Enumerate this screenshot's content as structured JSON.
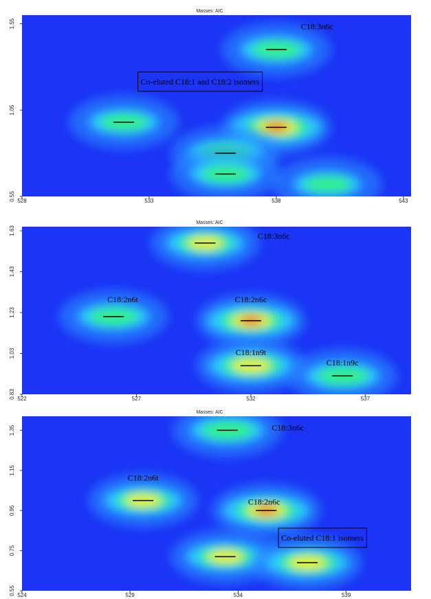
{
  "chart_data": [
    {
      "type": "contour",
      "title": "Masses: AIC",
      "background": "#1b34f5",
      "xlim": [
        528,
        543.3
      ],
      "ylim": [
        0.55,
        1.6
      ],
      "xticks": [
        528,
        533,
        538,
        543
      ],
      "yticks": [
        0.55,
        1.05,
        1.55
      ],
      "peaks": {
        "x": [
          538,
          538,
          532,
          536,
          536,
          540
        ],
        "y": [
          1.4,
          0.95,
          0.98,
          0.8,
          0.68,
          0.62
        ],
        "intensity": [
          0.55,
          1.0,
          0.5,
          0.6,
          0.5,
          0.45
        ],
        "marker": [
          true,
          true,
          true,
          true,
          true,
          false
        ]
      },
      "annotations": [
        {
          "text": "C18:3n6c",
          "x": 539.6,
          "y": 1.53,
          "boxed": false
        },
        {
          "text": "Co-eluted C18:1 and C18:2 isomers",
          "x": 535,
          "y": 1.21,
          "boxed": true
        }
      ]
    },
    {
      "type": "contour",
      "title": "Masses: AIC",
      "background": "#1b34f5",
      "xlim": [
        522,
        539
      ],
      "ylim": [
        0.83,
        1.65
      ],
      "xticks": [
        522,
        527,
        532,
        537
      ],
      "yticks": [
        0.83,
        1.03,
        1.23,
        1.43,
        1.63
      ],
      "peaks": {
        "x": [
          530,
          526,
          532,
          532,
          536
        ],
        "y": [
          1.57,
          1.21,
          1.19,
          0.97,
          0.92
        ],
        "intensity": [
          0.7,
          0.55,
          0.95,
          0.85,
          0.6
        ],
        "marker": [
          true,
          true,
          true,
          true,
          true
        ]
      },
      "annotations": [
        {
          "text": "C18:3n6c",
          "x": 533,
          "y": 1.6,
          "boxed": false
        },
        {
          "text": "C18:2n6t",
          "x": 526.4,
          "y": 1.29,
          "boxed": false
        },
        {
          "text": "C18:2n6c",
          "x": 532,
          "y": 1.29,
          "boxed": false
        },
        {
          "text": "C18:1n9t",
          "x": 532,
          "y": 1.03,
          "boxed": false
        },
        {
          "text": "C18:1n9c",
          "x": 536,
          "y": 0.98,
          "boxed": false
        }
      ]
    },
    {
      "type": "contour",
      "title": "Masses: AIC",
      "background": "#1b34f5",
      "xlim": [
        524,
        542
      ],
      "ylim": [
        0.55,
        1.42
      ],
      "xticks": [
        524,
        529,
        534,
        539
      ],
      "yticks": [
        0.55,
        0.75,
        0.95,
        1.15,
        1.35
      ],
      "peaks": {
        "x": [
          533.5,
          529.6,
          535.3,
          533.4,
          537.2
        ],
        "y": [
          1.35,
          1.0,
          0.95,
          0.72,
          0.69
        ],
        "intensity": [
          0.6,
          0.7,
          0.9,
          0.7,
          0.8
        ],
        "marker": [
          true,
          true,
          true,
          true,
          true
        ]
      },
      "annotations": [
        {
          "text": "C18:3n6c",
          "x": 536.3,
          "y": 1.36,
          "boxed": false
        },
        {
          "text": "C18:2n6t",
          "x": 529.6,
          "y": 1.11,
          "boxed": false
        },
        {
          "text": "C18:2n6c",
          "x": 535.2,
          "y": 0.99,
          "boxed": false
        },
        {
          "text": "Co-eluted C18:1 isomers",
          "x": 537.9,
          "y": 0.81,
          "boxed": true
        }
      ]
    }
  ]
}
